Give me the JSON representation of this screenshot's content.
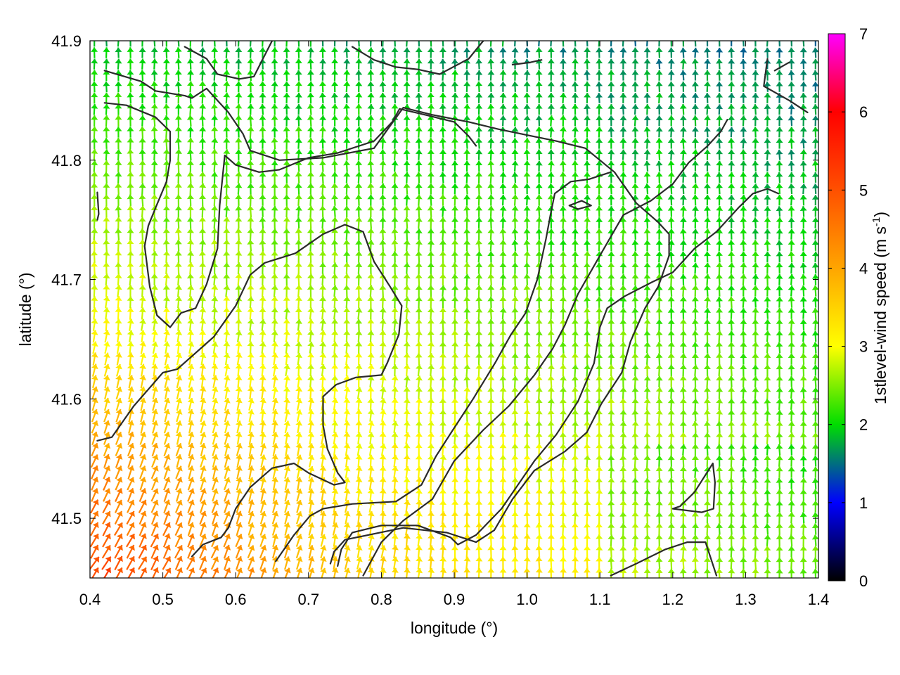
{
  "chart_data": {
    "type": "vector-field",
    "xlabel": "longitude (°)",
    "ylabel": "latitude (°)",
    "xlim": [
      0.4,
      1.4
    ],
    "ylim": [
      41.45,
      41.9
    ],
    "xticks": [
      "0.4",
      "0.5",
      "0.6",
      "0.7",
      "0.8",
      "0.9",
      "1.0",
      "1.1",
      "1.2",
      "1.3",
      "1.4"
    ],
    "yticks": [
      "41.5",
      "41.6",
      "41.7",
      "41.8",
      "41.9"
    ],
    "colorbar": {
      "label": "1stlevel-wind speed (m s",
      "label_superscript": "-1",
      "label_suffix": ")",
      "range": [
        0,
        7
      ],
      "ticks": [
        "0",
        "1",
        "2",
        "3",
        "4",
        "5",
        "6",
        "7"
      ],
      "palette": [
        {
          "value": 0,
          "color": "#000000"
        },
        {
          "value": 1,
          "color": "#0000ff"
        },
        {
          "value": 2,
          "color": "#00dd00"
        },
        {
          "value": 3,
          "color": "#ffff00"
        },
        {
          "value": 4,
          "color": "#ffa500"
        },
        {
          "value": 5,
          "color": "#ff5000"
        },
        {
          "value": 6,
          "color": "#ff0000"
        },
        {
          "value": 7,
          "color": "#ff00ff"
        }
      ]
    },
    "contour_color": "#2a2a2a",
    "contours": [
      [
        [
          0.42,
          41.875
        ],
        [
          0.47,
          41.866
        ],
        [
          0.49,
          41.858
        ],
        [
          0.53,
          41.854
        ],
        [
          0.54,
          41.852
        ],
        [
          0.56,
          41.86
        ],
        [
          0.59,
          41.84
        ],
        [
          0.61,
          41.822
        ],
        [
          0.62,
          41.808
        ],
        [
          0.66,
          41.8
        ],
        [
          0.72,
          41.802
        ],
        [
          0.79,
          41.81
        ],
        [
          0.83,
          41.844
        ],
        [
          0.87,
          41.838
        ],
        [
          0.92,
          41.832
        ],
        [
          0.96,
          41.826
        ],
        [
          1.04,
          41.816
        ],
        [
          1.08,
          41.81
        ],
        [
          1.12,
          41.79
        ],
        [
          1.15,
          41.764
        ],
        [
          1.18,
          41.748
        ],
        [
          1.195,
          41.738
        ],
        [
          1.195,
          41.72
        ],
        [
          1.18,
          41.694
        ],
        [
          1.162,
          41.676
        ],
        [
          1.142,
          41.648
        ],
        [
          1.13,
          41.622
        ],
        [
          1.102,
          41.596
        ],
        [
          1.082,
          41.572
        ],
        [
          1.052,
          41.556
        ],
        [
          1.01,
          41.54
        ],
        [
          0.98,
          41.516
        ],
        [
          0.955,
          41.49
        ],
        [
          0.93,
          41.48
        ],
        [
          0.89,
          41.488
        ],
        [
          0.83,
          41.492
        ],
        [
          0.75,
          41.482
        ],
        [
          0.735,
          41.472
        ],
        [
          0.73,
          41.462
        ]
      ],
      [
        [
          0.42,
          41.848
        ],
        [
          0.45,
          41.846
        ],
        [
          0.49,
          41.836
        ],
        [
          0.51,
          41.824
        ],
        [
          0.51,
          41.8
        ],
        [
          0.505,
          41.782
        ],
        [
          0.49,
          41.76
        ],
        [
          0.48,
          41.745
        ],
        [
          0.475,
          41.728
        ],
        [
          0.482,
          41.694
        ],
        [
          0.492,
          41.67
        ],
        [
          0.51,
          41.66
        ],
        [
          0.525,
          41.672
        ],
        [
          0.545,
          41.676
        ],
        [
          0.56,
          41.696
        ],
        [
          0.575,
          41.726
        ],
        [
          0.578,
          41.762
        ],
        [
          0.585,
          41.804
        ],
        [
          0.6,
          41.796
        ],
        [
          0.632,
          41.79
        ],
        [
          0.66,
          41.792
        ],
        [
          0.7,
          41.802
        ],
        [
          0.74,
          41.806
        ],
        [
          0.79,
          41.816
        ],
        [
          0.815,
          41.832
        ],
        [
          0.825,
          41.843
        ],
        [
          0.86,
          41.838
        ],
        [
          0.9,
          41.832
        ],
        [
          0.92,
          41.82
        ],
        [
          0.93,
          41.812
        ]
      ],
      [
        [
          0.41,
          41.565
        ],
        [
          0.43,
          41.568
        ],
        [
          0.46,
          41.594
        ],
        [
          0.48,
          41.608
        ],
        [
          0.5,
          41.622
        ],
        [
          0.52,
          41.625
        ],
        [
          0.57,
          41.652
        ],
        [
          0.6,
          41.678
        ],
        [
          0.62,
          41.704
        ],
        [
          0.64,
          41.714
        ],
        [
          0.682,
          41.722
        ],
        [
          0.72,
          41.738
        ],
        [
          0.75,
          41.746
        ],
        [
          0.775,
          41.74
        ],
        [
          0.79,
          41.715
        ],
        [
          0.812,
          41.694
        ],
        [
          0.828,
          41.678
        ],
        [
          0.824,
          41.654
        ],
        [
          0.808,
          41.63
        ],
        [
          0.8,
          41.62
        ],
        [
          0.765,
          41.618
        ],
        [
          0.738,
          41.612
        ],
        [
          0.72,
          41.602
        ],
        [
          0.72,
          41.578
        ],
        [
          0.726,
          41.558
        ],
        [
          0.74,
          41.538
        ],
        [
          0.75,
          41.53
        ],
        [
          0.735,
          41.528
        ],
        [
          0.7,
          41.538
        ],
        [
          0.68,
          41.546
        ],
        [
          0.65,
          41.542
        ],
        [
          0.62,
          41.526
        ],
        [
          0.6,
          41.508
        ],
        [
          0.59,
          41.492
        ],
        [
          0.58,
          41.484
        ],
        [
          0.555,
          41.478
        ],
        [
          0.54,
          41.468
        ]
      ],
      [
        [
          0.655,
          41.464
        ],
        [
          0.68,
          41.486
        ],
        [
          0.702,
          41.502
        ],
        [
          0.72,
          41.508
        ],
        [
          0.76,
          41.512
        ],
        [
          0.82,
          41.514
        ],
        [
          0.855,
          41.528
        ],
        [
          0.875,
          41.552
        ],
        [
          0.896,
          41.572
        ],
        [
          0.926,
          41.6
        ],
        [
          0.956,
          41.63
        ],
        [
          0.978,
          41.654
        ],
        [
          0.998,
          41.672
        ],
        [
          1.014,
          41.7
        ],
        [
          1.026,
          41.734
        ],
        [
          1.032,
          41.754
        ],
        [
          1.038,
          41.772
        ],
        [
          1.06,
          41.782
        ],
        [
          1.085,
          41.784
        ],
        [
          1.1,
          41.787
        ],
        [
          1.115,
          41.79
        ]
      ],
      [
        [
          0.74,
          41.46
        ],
        [
          0.745,
          41.474
        ],
        [
          0.76,
          41.488
        ],
        [
          0.8,
          41.494
        ],
        [
          0.85,
          41.494
        ],
        [
          0.895,
          41.484
        ],
        [
          0.905,
          41.478
        ],
        [
          0.93,
          41.486
        ],
        [
          0.965,
          41.508
        ],
        [
          1.01,
          41.548
        ],
        [
          1.04,
          41.57
        ],
        [
          1.07,
          41.598
        ],
        [
          1.092,
          41.63
        ],
        [
          1.1,
          41.66
        ],
        [
          1.11,
          41.676
        ],
        [
          1.134,
          41.686
        ],
        [
          1.172,
          41.698
        ],
        [
          1.2,
          41.706
        ],
        [
          1.23,
          41.726
        ],
        [
          1.26,
          41.74
        ],
        [
          1.29,
          41.76
        ],
        [
          1.31,
          41.772
        ],
        [
          1.33,
          41.776
        ],
        [
          1.345,
          41.772
        ]
      ],
      [
        [
          0.775,
          41.452
        ],
        [
          0.8,
          41.48
        ],
        [
          0.83,
          41.498
        ],
        [
          0.87,
          41.516
        ],
        [
          0.9,
          41.548
        ],
        [
          0.94,
          41.574
        ],
        [
          0.975,
          41.594
        ],
        [
          1.01,
          41.62
        ],
        [
          1.035,
          41.642
        ],
        [
          1.052,
          41.662
        ],
        [
          1.07,
          41.688
        ],
        [
          1.1,
          41.72
        ],
        [
          1.132,
          41.754
        ],
        [
          1.17,
          41.766
        ],
        [
          1.2,
          41.78
        ],
        [
          1.222,
          41.798
        ],
        [
          1.248,
          41.812
        ],
        [
          1.266,
          41.824
        ],
        [
          1.275,
          41.834
        ]
      ],
      [
        [
          1.115,
          41.452
        ],
        [
          1.15,
          41.462
        ],
        [
          1.19,
          41.474
        ],
        [
          1.22,
          41.48
        ],
        [
          1.245,
          41.48
        ],
        [
          1.26,
          41.452
        ]
      ],
      [
        [
          1.2,
          41.508
        ],
        [
          1.24,
          41.505
        ],
        [
          1.256,
          41.508
        ],
        [
          1.258,
          41.53
        ],
        [
          1.255,
          41.546
        ],
        [
          1.23,
          41.522
        ],
        [
          1.21,
          41.51
        ],
        [
          1.2,
          41.508
        ]
      ],
      [
        [
          1.058,
          41.762
        ],
        [
          1.075,
          41.766
        ],
        [
          1.088,
          41.762
        ],
        [
          1.07,
          41.759
        ],
        [
          1.058,
          41.762
        ]
      ],
      [
        [
          0.41,
          41.773
        ],
        [
          0.412,
          41.755
        ],
        [
          0.41,
          41.75
        ]
      ],
      [
        [
          0.53,
          41.895
        ],
        [
          0.56,
          41.885
        ],
        [
          0.575,
          41.872
        ],
        [
          0.605,
          41.868
        ],
        [
          0.625,
          41.87
        ],
        [
          0.64,
          41.888
        ],
        [
          0.65,
          41.9
        ]
      ],
      [
        [
          0.76,
          41.895
        ],
        [
          0.79,
          41.884
        ],
        [
          0.82,
          41.878
        ],
        [
          0.85,
          41.876
        ],
        [
          0.88,
          41.872
        ],
        [
          0.92,
          41.885
        ],
        [
          0.94,
          41.9
        ]
      ],
      [
        [
          0.98,
          41.88
        ],
        [
          1.005,
          41.882
        ],
        [
          1.02,
          41.884
        ]
      ],
      [
        [
          1.33,
          41.885
        ],
        [
          1.325,
          41.862
        ],
        [
          1.36,
          41.85
        ],
        [
          1.385,
          41.84
        ]
      ],
      [
        [
          1.34,
          41.875
        ],
        [
          1.36,
          41.882
        ]
      ]
    ],
    "wind_field": {
      "description": "Dense vector field of wind arrows; direction mostly northward over most of domain, northeastward and stronger (orange) in the southwest corner.",
      "grid_spacing_deg": [
        0.0165,
        0.0095
      ],
      "regions": [
        {
          "name": "north-green",
          "lat_min": 41.7,
          "speed_range": [
            1.8,
            2.4
          ],
          "direction_deg": 0
        },
        {
          "name": "central-yellow",
          "lat_min": 41.55,
          "lat_max": 41.7,
          "speed_range": [
            2.5,
            3.0
          ],
          "direction_deg": 0
        },
        {
          "name": "southwest-orange",
          "lon_max": 0.7,
          "lat_max": 41.6,
          "speed_range": [
            3.3,
            4.6
          ],
          "direction_deg": 30
        },
        {
          "name": "southeast-green",
          "lon_min": 1.1,
          "lat_max": 41.55,
          "speed_range": [
            1.6,
            2.2
          ],
          "direction_deg": 10
        }
      ]
    }
  }
}
